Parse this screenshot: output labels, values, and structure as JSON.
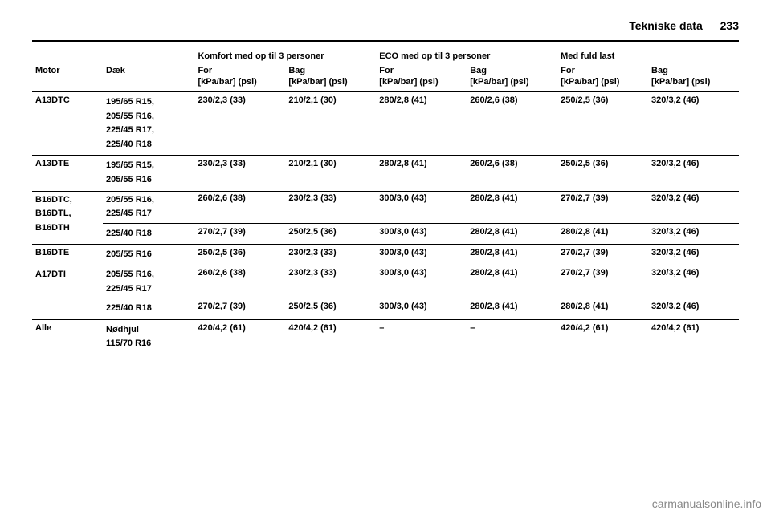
{
  "header": {
    "section_title": "Tekniske data",
    "page_number": "233"
  },
  "table": {
    "group_headers": {
      "komfort": "Komfort med op til 3 personer",
      "eco": "ECO med op til 3 personer",
      "fuld": "Med fuld last"
    },
    "col_headers": {
      "motor": "Motor",
      "daek": "Dæk",
      "for": "For",
      "bag": "Bag"
    },
    "units": "[kPa/bar] (psi)",
    "rows": [
      {
        "motor": "A13DTC",
        "tyres": [
          "195/65 R15,",
          "205/55 R16,",
          "225/45 R17,",
          "225/40 R18"
        ],
        "vals": [
          "230/2,3 (33)",
          "210/2,1 (30)",
          "280/2,8 (41)",
          "260/2,6 (38)",
          "250/2,5 (36)",
          "320/3,2 (46)"
        ]
      },
      {
        "motor": "A13DTE",
        "tyres": [
          "195/65 R15,",
          "205/55 R16"
        ],
        "vals": [
          "230/2,3 (33)",
          "210/2,1 (30)",
          "280/2,8 (41)",
          "260/2,6 (38)",
          "250/2,5 (36)",
          "320/3,2 (46)"
        ]
      },
      {
        "motor": "B16DTC, B16DTL, B16DTH",
        "subrows": [
          {
            "tyres": [
              "205/55 R16,",
              "225/45 R17"
            ],
            "vals": [
              "260/2,6 (38)",
              "230/2,3 (33)",
              "300/3,0 (43)",
              "280/2,8 (41)",
              "270/2,7 (39)",
              "320/3,2 (46)"
            ]
          },
          {
            "tyres": [
              "225/40 R18"
            ],
            "vals": [
              "270/2,7 (39)",
              "250/2,5 (36)",
              "300/3,0 (43)",
              "280/2,8 (41)",
              "280/2,8 (41)",
              "320/3,2 (46)"
            ]
          }
        ]
      },
      {
        "motor": "B16DTE",
        "tyres": [
          "205/55 R16"
        ],
        "vals": [
          "250/2,5 (36)",
          "230/2,3 (33)",
          "300/3,0 (43)",
          "280/2,8 (41)",
          "270/2,7 (39)",
          "320/3,2 (46)"
        ]
      },
      {
        "motor": "A17DTI",
        "subrows": [
          {
            "tyres": [
              "205/55 R16,",
              "225/45 R17"
            ],
            "vals": [
              "260/2,6 (38)",
              "230/2,3 (33)",
              "300/3,0 (43)",
              "280/2,8 (41)",
              "270/2,7 (39)",
              "320/3,2 (46)"
            ]
          },
          {
            "tyres": [
              "225/40 R18"
            ],
            "vals": [
              "270/2,7 (39)",
              "250/2,5 (36)",
              "300/3,0 (43)",
              "280/2,8 (41)",
              "280/2,8 (41)",
              "320/3,2 (46)"
            ]
          }
        ]
      },
      {
        "motor": "Alle",
        "tyres": [
          "Nødhjul",
          "115/70 R16"
        ],
        "vals": [
          "420/4,2 (61)",
          "420/4,2 (61)",
          "–",
          "–",
          "420/4,2 (61)",
          "420/4,2 (61)"
        ]
      }
    ]
  },
  "footer": "carmanualsonline.info"
}
